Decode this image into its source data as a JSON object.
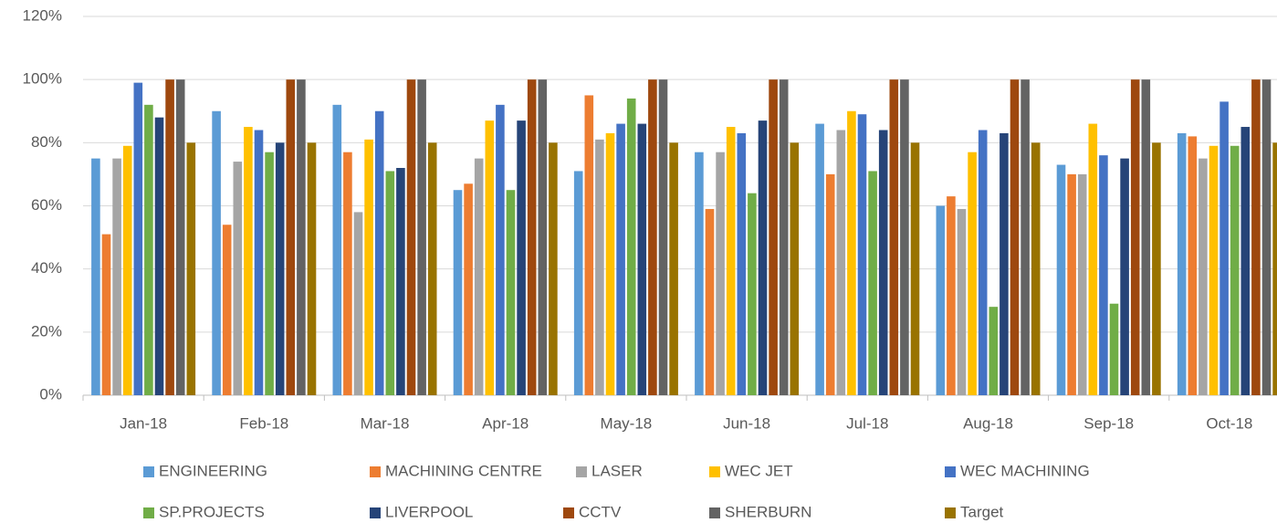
{
  "chart_data": {
    "type": "bar",
    "categories": [
      "Jan-18",
      "Feb-18",
      "Mar-18",
      "Apr-18",
      "May-18",
      "Jun-18",
      "Jul-18",
      "Aug-18",
      "Sep-18",
      "Oct-18"
    ],
    "series": [
      {
        "name": "ENGINEERING",
        "color": "#5b9bd5",
        "values": [
          75,
          90,
          92,
          65,
          71,
          77,
          86,
          60,
          73,
          83
        ]
      },
      {
        "name": "MACHINING CENTRE",
        "color": "#ed7d31",
        "values": [
          51,
          54,
          77,
          67,
          95,
          59,
          70,
          63,
          70,
          82
        ]
      },
      {
        "name": "LASER",
        "color": "#a5a5a5",
        "values": [
          75,
          74,
          58,
          75,
          81,
          77,
          84,
          59,
          70,
          75
        ]
      },
      {
        "name": "WEC JET",
        "color": "#ffc000",
        "values": [
          79,
          85,
          81,
          87,
          83,
          85,
          90,
          77,
          86,
          79
        ]
      },
      {
        "name": "WEC MACHINING",
        "color": "#4472c4",
        "values": [
          99,
          84,
          90,
          92,
          86,
          83,
          89,
          84,
          76,
          93
        ]
      },
      {
        "name": "SP.PROJECTS",
        "color": "#70ad47",
        "values": [
          92,
          77,
          71,
          65,
          94,
          64,
          71,
          28,
          29,
          79
        ]
      },
      {
        "name": "LIVERPOOL",
        "color": "#264478",
        "values": [
          88,
          80,
          72,
          87,
          86,
          87,
          84,
          83,
          75,
          85
        ]
      },
      {
        "name": "CCTV",
        "color": "#9e480e",
        "values": [
          100,
          100,
          100,
          100,
          100,
          100,
          100,
          100,
          100,
          100
        ]
      },
      {
        "name": "SHERBURN",
        "color": "#636363",
        "values": [
          100,
          100,
          100,
          100,
          100,
          100,
          100,
          100,
          100,
          100
        ]
      },
      {
        "name": "Target",
        "color": "#997300",
        "values": [
          80,
          80,
          80,
          80,
          80,
          80,
          80,
          80,
          80,
          80
        ]
      }
    ],
    "ylim": [
      0,
      120
    ],
    "yticks": [
      {
        "value": 0,
        "label": "0%"
      },
      {
        "value": 20,
        "label": "20%"
      },
      {
        "value": 40,
        "label": "40%"
      },
      {
        "value": 60,
        "label": "60%"
      },
      {
        "value": 80,
        "label": "80%"
      },
      {
        "value": 100,
        "label": "100%"
      },
      {
        "value": 120,
        "label": "120%"
      }
    ],
    "grid": true
  }
}
